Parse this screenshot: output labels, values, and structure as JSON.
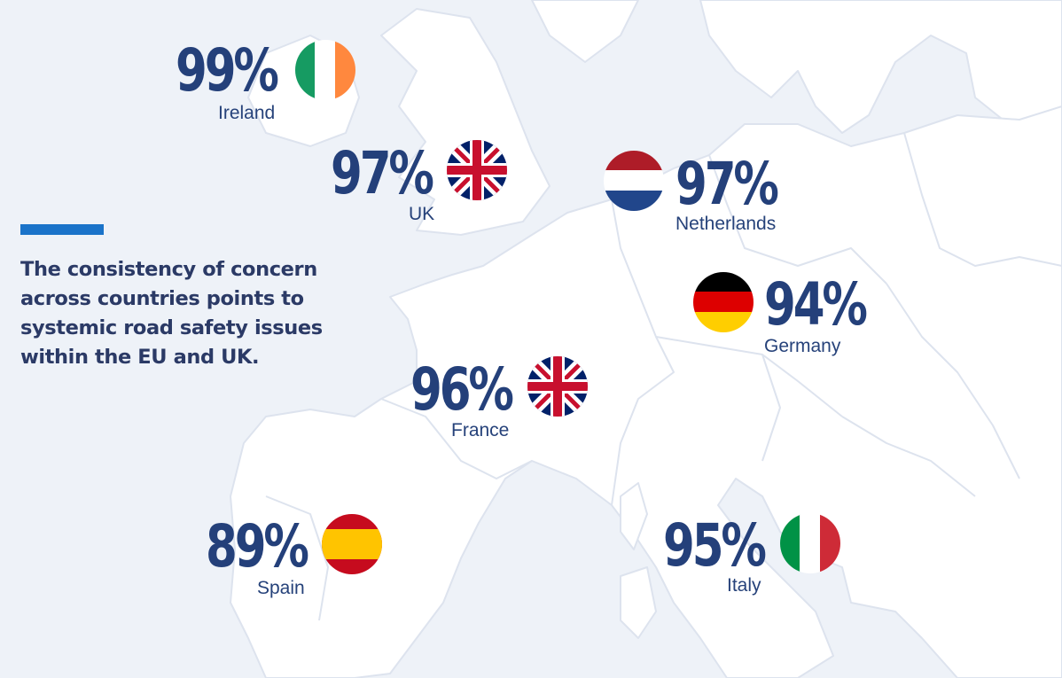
{
  "headline": "The consistency of concern across countries points to systemic road safety issues within the EU and UK.",
  "colors": {
    "sea": "#eef2f8",
    "land": "#ffffff",
    "border": "#dde3ee",
    "accent": "#1a73c9",
    "text": "#24407a"
  },
  "markers": [
    {
      "key": "ireland",
      "value": "99%",
      "country": "Ireland",
      "flag": "ireland-flag-icon"
    },
    {
      "key": "uk",
      "value": "97%",
      "country": "UK",
      "flag": "union-jack-flag-icon"
    },
    {
      "key": "netherlands",
      "value": "97%",
      "country": "Netherlands",
      "flag": "netherlands-flag-icon"
    },
    {
      "key": "germany",
      "value": "94%",
      "country": "Germany",
      "flag": "germany-flag-icon"
    },
    {
      "key": "france",
      "value": "96%",
      "country": "France",
      "flag": "union-jack-flag-icon"
    },
    {
      "key": "spain",
      "value": "89%",
      "country": "Spain",
      "flag": "spain-flag-icon"
    },
    {
      "key": "italy",
      "value": "95%",
      "country": "Italy",
      "flag": "italy-flag-icon"
    }
  ]
}
